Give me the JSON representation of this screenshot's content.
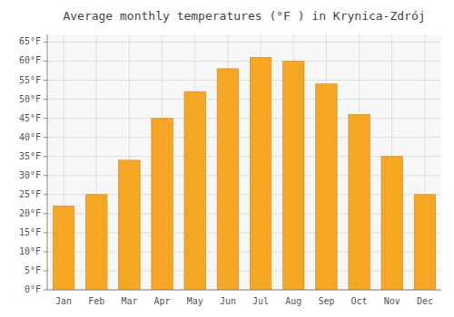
{
  "chart_data": {
    "type": "bar",
    "title": "Average monthly temperatures (°F ) in Krynica-Zdrój",
    "categories": [
      "Jan",
      "Feb",
      "Mar",
      "Apr",
      "May",
      "Jun",
      "Jul",
      "Aug",
      "Sep",
      "Oct",
      "Nov",
      "Dec"
    ],
    "values": [
      22,
      25,
      34,
      45,
      52,
      58,
      61,
      60,
      54,
      46,
      35,
      25
    ],
    "color": "#F5A623",
    "ylim": [
      0,
      67
    ],
    "yticks": [
      {
        "value": 0,
        "label": "0°F"
      },
      {
        "value": 5,
        "label": "5°F"
      },
      {
        "value": 10,
        "label": "10°F"
      },
      {
        "value": 15,
        "label": "15°F"
      },
      {
        "value": 20,
        "label": "20°F"
      },
      {
        "value": 25,
        "label": "25°F"
      },
      {
        "value": 30,
        "label": "30°F"
      },
      {
        "value": 35,
        "label": "35°F"
      },
      {
        "value": 40,
        "label": "40°F"
      },
      {
        "value": 45,
        "label": "45°F"
      },
      {
        "value": 50,
        "label": "50°F"
      },
      {
        "value": 55,
        "label": "55°F"
      },
      {
        "value": 60,
        "label": "60°F"
      },
      {
        "value": 65,
        "label": "65°F"
      }
    ],
    "grid": true
  }
}
